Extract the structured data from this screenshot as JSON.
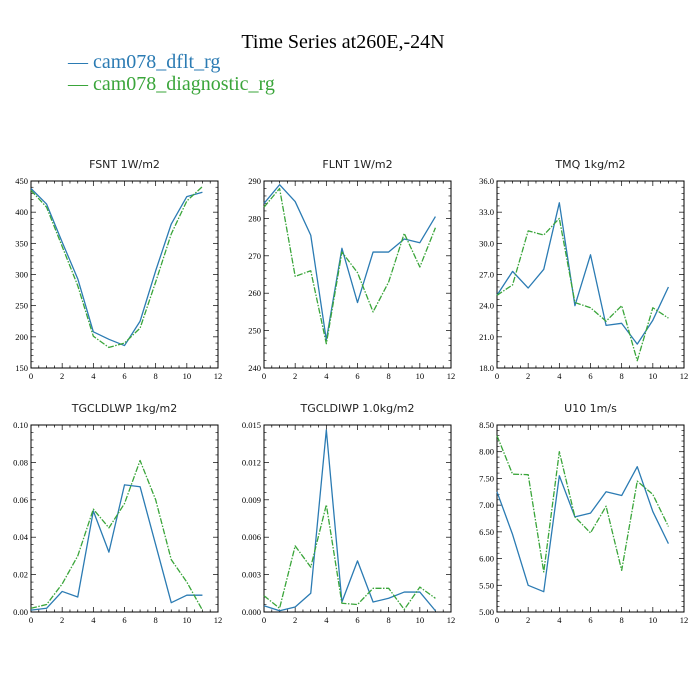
{
  "title": "Time Series at260E,-24N",
  "legend": [
    {
      "label": "— cam078_dflt_rg",
      "color": "#2b7bb3"
    },
    {
      "label": "— cam078_diagnostic_rg",
      "color": "#3aa53a"
    }
  ],
  "chart_data": [
    {
      "type": "line",
      "title": "FSNT   1W/m2",
      "x": [
        0,
        1,
        2,
        3,
        4,
        5,
        6,
        7,
        8,
        9,
        10,
        11
      ],
      "xlim": [
        0,
        12
      ],
      "xticks": [
        0,
        2,
        4,
        6,
        8,
        10,
        12
      ],
      "xtick_labels": [
        "0",
        "2",
        "4",
        "6",
        "8",
        "10",
        "12"
      ],
      "ylim": [
        150,
        450
      ],
      "yticks": [
        150,
        200,
        250,
        300,
        350,
        400,
        450
      ],
      "ytick_labels": [
        "150",
        "200",
        "250",
        "300",
        "350",
        "400",
        "450"
      ],
      "series": [
        {
          "name": "cam078_dflt_rg",
          "color": "#2b7bb3",
          "dashed": false,
          "values": [
            438,
            413,
            352,
            293,
            208,
            196,
            186,
            225,
            306,
            381,
            425,
            432
          ]
        },
        {
          "name": "cam078_diagnostic_rg",
          "color": "#3aa53a",
          "dashed": true,
          "values": [
            435,
            408,
            345,
            282,
            201,
            183,
            190,
            214,
            288,
            365,
            418,
            441
          ]
        }
      ]
    },
    {
      "type": "line",
      "title": "FLNT   1W/m2",
      "x": [
        0,
        1,
        2,
        3,
        4,
        5,
        6,
        7,
        8,
        9,
        10,
        11
      ],
      "xlim": [
        0,
        12
      ],
      "xticks": [
        0,
        2,
        4,
        6,
        8,
        10,
        12
      ],
      "xtick_labels": [
        "0",
        "2",
        "4",
        "6",
        "8",
        "10",
        "12"
      ],
      "ylim": [
        240,
        290
      ],
      "yticks": [
        240,
        250,
        260,
        270,
        280,
        290
      ],
      "ytick_labels": [
        "240",
        "250",
        "260",
        "270",
        "280",
        "290"
      ],
      "series": [
        {
          "name": "cam078_dflt_rg",
          "color": "#2b7bb3",
          "dashed": false,
          "values": [
            284,
            289,
            284.5,
            275.5,
            247.5,
            272,
            257.5,
            271,
            271,
            274.5,
            273.5,
            280.5
          ]
        },
        {
          "name": "cam078_diagnostic_rg",
          "color": "#3aa53a",
          "dashed": true,
          "values": [
            283,
            288,
            264.5,
            266,
            246.5,
            271,
            265.5,
            255,
            263,
            276,
            267,
            277.5
          ]
        }
      ]
    },
    {
      "type": "line",
      "title": "TMQ   1kg/m2",
      "x": [
        0,
        1,
        2,
        3,
        4,
        5,
        6,
        7,
        8,
        9,
        10,
        11
      ],
      "xlim": [
        0,
        12
      ],
      "xticks": [
        0,
        2,
        4,
        6,
        8,
        10,
        12
      ],
      "xtick_labels": [
        "0",
        "2",
        "4",
        "6",
        "8",
        "10",
        "12"
      ],
      "ylim": [
        18,
        36
      ],
      "yticks": [
        18,
        21,
        24,
        27,
        30,
        33,
        36
      ],
      "ytick_labels": [
        "18.0",
        "21.0",
        "24.0",
        "27.0",
        "30.0",
        "33.0",
        "36.0"
      ],
      "series": [
        {
          "name": "cam078_dflt_rg",
          "color": "#2b7bb3",
          "dashed": false,
          "values": [
            25.0,
            27.3,
            25.7,
            27.5,
            33.9,
            24.0,
            28.9,
            22.1,
            22.3,
            20.3,
            22.6,
            25.8
          ]
        },
        {
          "name": "cam078_diagnostic_rg",
          "color": "#3aa53a",
          "dashed": true,
          "values": [
            25.0,
            26.0,
            31.2,
            30.8,
            32.4,
            24.3,
            23.8,
            22.5,
            24.0,
            18.7,
            23.8,
            22.8
          ]
        }
      ]
    },
    {
      "type": "line",
      "title": "TGCLDLWP   1kg/m2",
      "x": [
        0,
        1,
        2,
        3,
        4,
        5,
        6,
        7,
        8,
        9,
        10,
        11
      ],
      "xlim": [
        0,
        12
      ],
      "xticks": [
        0,
        2,
        4,
        6,
        8,
        10,
        12
      ],
      "xtick_labels": [
        "0",
        "2",
        "4",
        "6",
        "8",
        "10",
        "12"
      ],
      "ylim": [
        0,
        0.1
      ],
      "yticks": [
        0,
        0.02,
        0.04,
        0.06,
        0.08,
        0.1
      ],
      "ytick_labels": [
        "0.00",
        "0.02",
        "0.04",
        "0.06",
        "0.08",
        "0.10"
      ],
      "series": [
        {
          "name": "cam078_dflt_rg",
          "color": "#2b7bb3",
          "dashed": false,
          "values": [
            0.001,
            0.002,
            0.011,
            0.008,
            0.054,
            0.032,
            0.068,
            0.067,
            0.036,
            0.005,
            0.009,
            0.009
          ]
        },
        {
          "name": "cam078_diagnostic_rg",
          "color": "#3aa53a",
          "dashed": true,
          "values": [
            0.002,
            0.004,
            0.015,
            0.03,
            0.055,
            0.045,
            0.058,
            0.081,
            0.06,
            0.028,
            0.016,
            0.001
          ]
        }
      ]
    },
    {
      "type": "line",
      "title": "TGCLDIWP   1.0kg/m2",
      "x": [
        0,
        1,
        2,
        3,
        4,
        5,
        6,
        7,
        8,
        9,
        10,
        11
      ],
      "xlim": [
        0,
        12
      ],
      "xticks": [
        0,
        2,
        4,
        6,
        8,
        10,
        12
      ],
      "xtick_labels": [
        "0",
        "2",
        "4",
        "6",
        "8",
        "10",
        "12"
      ],
      "ylim": [
        0,
        0.015
      ],
      "yticks": [
        0,
        0.003,
        0.006,
        0.009,
        0.012,
        0.015
      ],
      "ytick_labels": [
        "0.000",
        "0.003",
        "0.006",
        "0.009",
        "0.012",
        "0.015"
      ],
      "series": [
        {
          "name": "cam078_dflt_rg",
          "color": "#2b7bb3",
          "dashed": false,
          "values": [
            0.0005,
            0.0001,
            0.0004,
            0.0015,
            0.0146,
            0.0008,
            0.0041,
            0.0008,
            0.0011,
            0.0016,
            0.0016,
            0.0001
          ]
        },
        {
          "name": "cam078_diagnostic_rg",
          "color": "#3aa53a",
          "dashed": true,
          "values": [
            0.0013,
            0.0003,
            0.0053,
            0.0036,
            0.0086,
            0.0007,
            0.0006,
            0.0019,
            0.0019,
            0.0002,
            0.002,
            0.0011
          ]
        }
      ]
    },
    {
      "type": "line",
      "title": "U10   1m/s",
      "x": [
        0,
        1,
        2,
        3,
        4,
        5,
        6,
        7,
        8,
        9,
        10,
        11
      ],
      "xlim": [
        0,
        12
      ],
      "xticks": [
        0,
        2,
        4,
        6,
        8,
        10,
        12
      ],
      "xtick_labels": [
        "0",
        "2",
        "4",
        "6",
        "8",
        "10",
        "12"
      ],
      "ylim": [
        5,
        8.5
      ],
      "yticks": [
        5,
        5.5,
        6,
        6.5,
        7,
        7.5,
        8,
        8.5
      ],
      "ytick_labels": [
        "5.00",
        "5.50",
        "6.00",
        "6.50",
        "7.00",
        "7.50",
        "8.00",
        "8.50"
      ],
      "series": [
        {
          "name": "cam078_dflt_rg",
          "color": "#2b7bb3",
          "dashed": false,
          "values": [
            7.25,
            6.45,
            5.5,
            5.38,
            7.55,
            6.78,
            6.85,
            7.25,
            7.18,
            7.72,
            6.88,
            6.28
          ]
        },
        {
          "name": "cam078_diagnostic_rg",
          "color": "#3aa53a",
          "dashed": true,
          "values": [
            8.3,
            7.58,
            7.57,
            5.75,
            8.0,
            6.78,
            6.48,
            6.98,
            5.78,
            7.45,
            7.2,
            6.6
          ]
        }
      ]
    }
  ]
}
